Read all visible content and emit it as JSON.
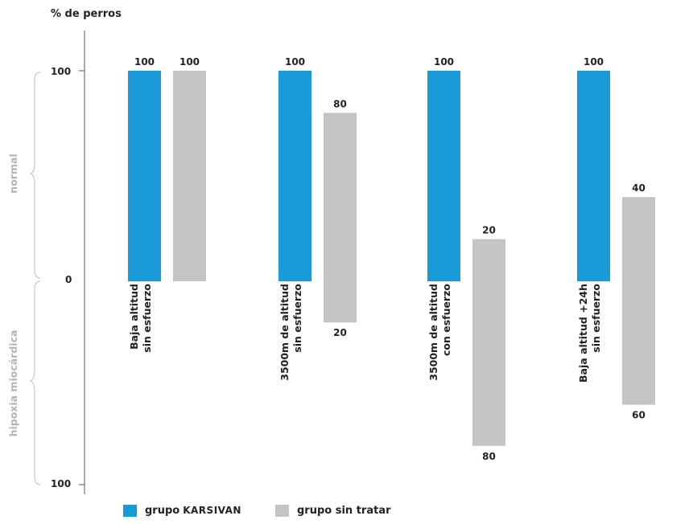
{
  "chart_data": {
    "type": "bar",
    "ylabel": "% de perros",
    "y_axis": {
      "top_label": "100",
      "zero_label": "0",
      "bottom_label": "100",
      "upper_range": [
        0,
        100
      ],
      "lower_range": [
        0,
        100
      ]
    },
    "regions": {
      "upper": "normal",
      "lower": "hipoxia miocárdica"
    },
    "categories": [
      [
        "Baja altitud",
        "sin esfuerzo"
      ],
      [
        "3500m de altitud",
        "sin esfuerzo"
      ],
      [
        "3500m de altitud",
        "con esfuerzo"
      ],
      [
        "Baja altitud +24h",
        "sin esfuerzo"
      ]
    ],
    "series": [
      {
        "name": "grupo KARSIVAN",
        "color": "#1a9ad8",
        "normal": [
          100,
          100,
          100,
          100
        ],
        "hipoxia": [
          0,
          0,
          0,
          0
        ],
        "labels_top": [
          "100",
          "100",
          "100",
          "100"
        ],
        "labels_bottom": [
          "",
          "",
          "",
          ""
        ]
      },
      {
        "name": "grupo sin tratar",
        "color": "#c4c4c6",
        "normal": [
          100,
          80,
          20,
          40
        ],
        "hipoxia": [
          0,
          20,
          80,
          60
        ],
        "labels_top": [
          "100",
          "80",
          "20",
          "40"
        ],
        "labels_bottom": [
          "",
          "20",
          "80",
          "60"
        ]
      }
    ],
    "grid": false
  },
  "legend": {
    "karsivan_prefix": "grupo",
    "karsivan_brand": "KARSIVAN",
    "untreated": "grupo sin tratar"
  }
}
